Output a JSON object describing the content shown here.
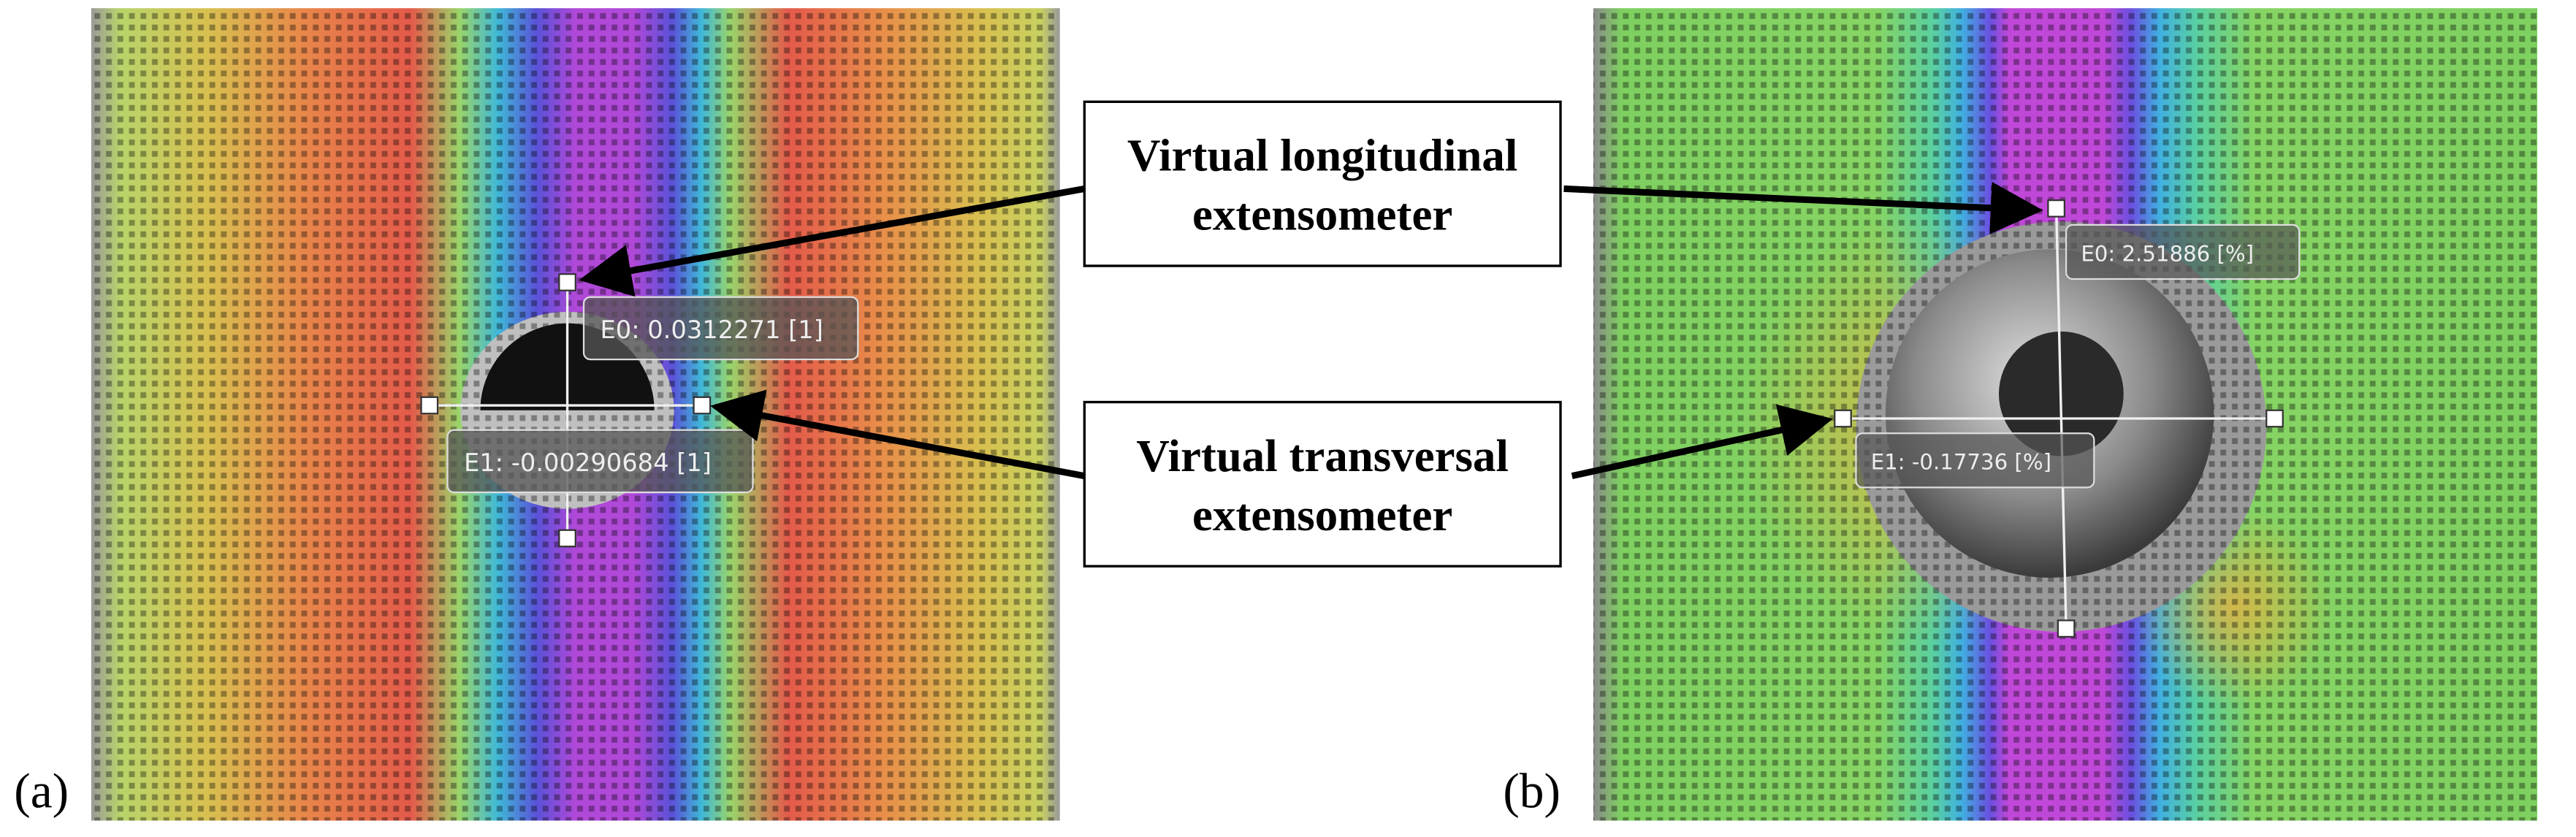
{
  "panels": [
    {
      "label": "(a)",
      "readouts": [
        "E0: 0.0312271 [1]",
        "E1: -0.00290684 [1]"
      ]
    },
    {
      "label": "(b)",
      "readouts": [
        "E0: 2.51886 [%]",
        "E1: -0.17736 [%]"
      ]
    }
  ],
  "callouts": [
    {
      "lines": [
        "Virtual longitudinal",
        "extensometer"
      ]
    },
    {
      "lines": [
        "Virtual transversal",
        "extensometer"
      ]
    }
  ]
}
